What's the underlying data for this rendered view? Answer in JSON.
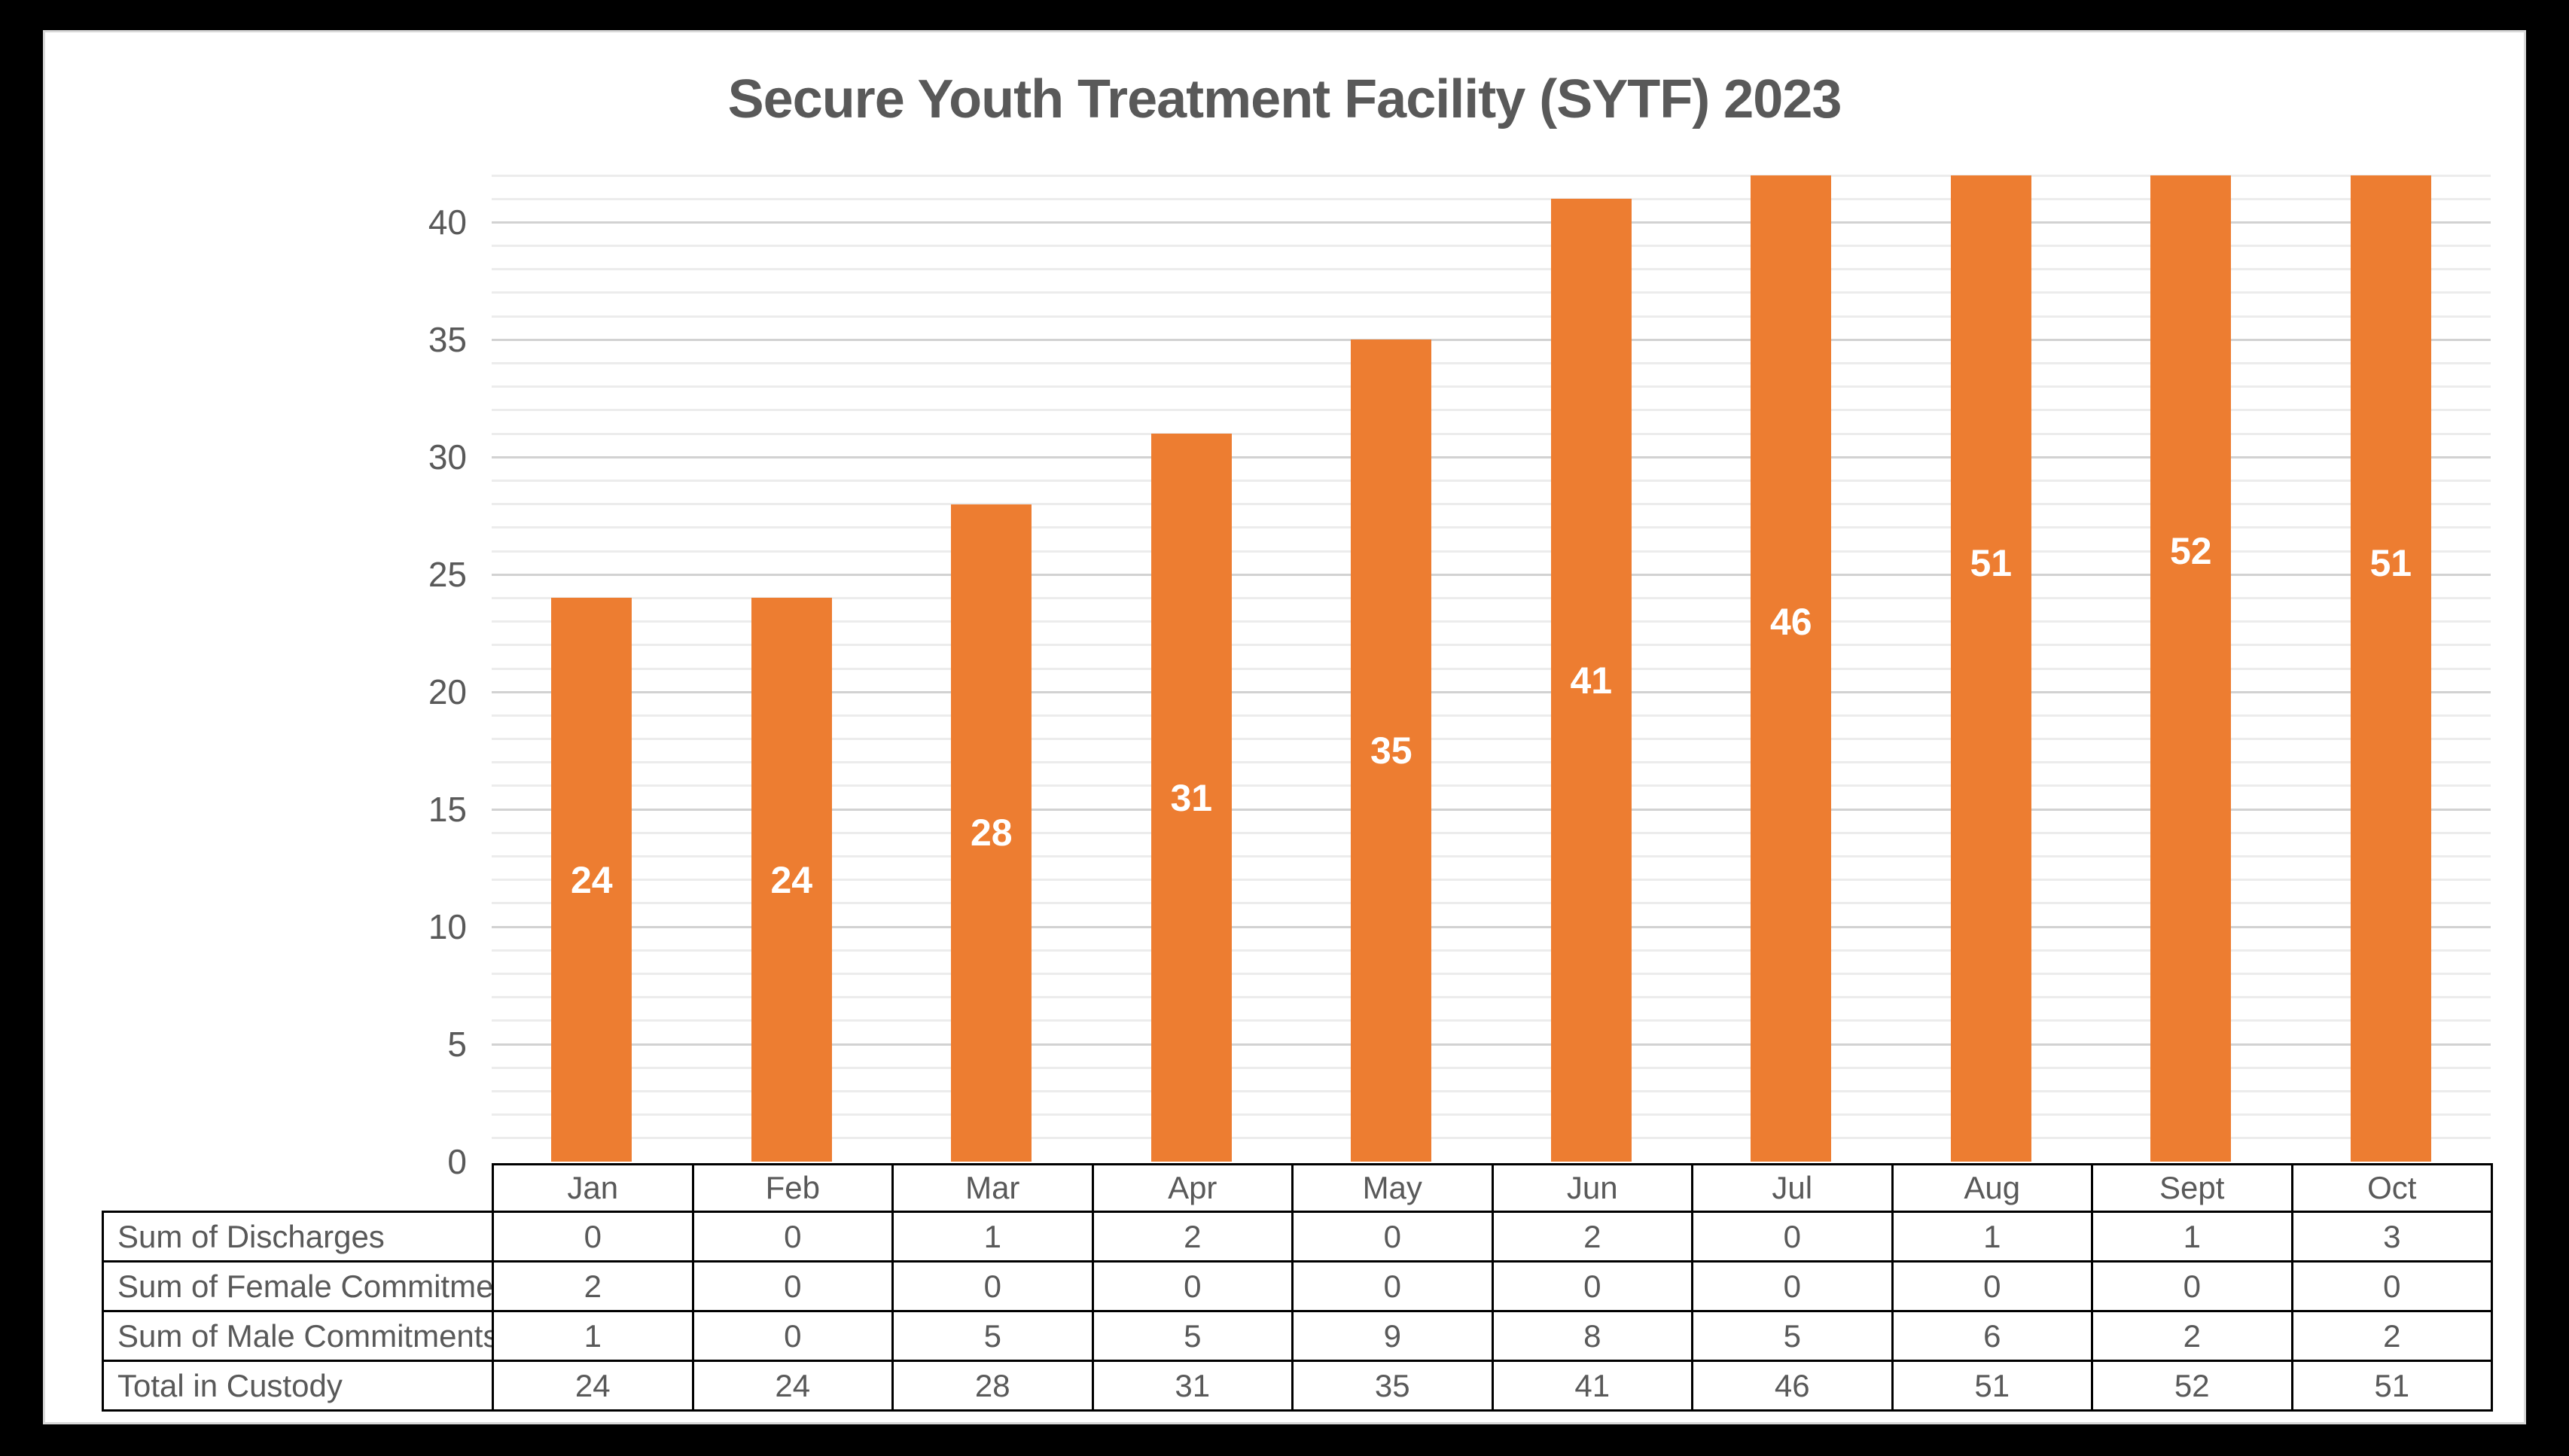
{
  "chart_data": {
    "type": "bar",
    "title": "Secure Youth Treatment Facility (SYTF) 2023",
    "categories": [
      "Jan",
      "Feb",
      "Mar",
      "Apr",
      "May",
      "Jun",
      "Jul",
      "Aug",
      "Sept",
      "Oct"
    ],
    "series": [
      {
        "name": "Sum of Discharges",
        "values": [
          0,
          0,
          1,
          2,
          0,
          2,
          0,
          1,
          1,
          3
        ]
      },
      {
        "name": "Sum of Female Commitments",
        "values": [
          2,
          0,
          0,
          0,
          0,
          0,
          0,
          0,
          0,
          0
        ]
      },
      {
        "name": "Sum of Male Commitments",
        "values": [
          1,
          0,
          5,
          5,
          9,
          8,
          5,
          6,
          2,
          2
        ]
      },
      {
        "name": "Total in Custody",
        "values": [
          24,
          24,
          28,
          31,
          35,
          41,
          46,
          51,
          52,
          51
        ]
      }
    ],
    "plotted_series": "Total in Custody",
    "values": [
      24,
      24,
      28,
      31,
      35,
      41,
      46,
      51,
      52,
      51
    ],
    "data_labels": [
      "24",
      "24",
      "28",
      "31",
      "35",
      "41",
      "46",
      "51",
      "52",
      "51"
    ],
    "xlabel": "",
    "ylabel": "",
    "ylim": [
      0,
      42
    ],
    "y_major_ticks": [
      0,
      5,
      10,
      15,
      20,
      25,
      30,
      35,
      40
    ],
    "y_minor_unit": 1,
    "grid": true,
    "legend": "none",
    "bars_clipped_at_axis_max": true
  },
  "colors": {
    "bar": "#ED7D31",
    "bar_label": "#FFFFFF",
    "text": "#595959",
    "major_grid": "#D2D2D2",
    "minor_grid": "#ECECEC",
    "table_border": "#000000",
    "page_background": "#000000",
    "panel_background": "#FFFFFF",
    "panel_border": "#D9D9D9"
  },
  "table": {
    "month_headers": [
      "Jan",
      "Feb",
      "Mar",
      "Apr",
      "May",
      "Jun",
      "Jul",
      "Aug",
      "Sept",
      "Oct"
    ],
    "rows": [
      {
        "label": "Sum of Discharges",
        "values": [
          "0",
          "0",
          "1",
          "2",
          "0",
          "2",
          "0",
          "1",
          "1",
          "3"
        ]
      },
      {
        "label": "Sum of Female Commitments",
        "values": [
          "2",
          "0",
          "0",
          "0",
          "0",
          "0",
          "0",
          "0",
          "0",
          "0"
        ]
      },
      {
        "label": "Sum of Male Commitments",
        "values": [
          "1",
          "0",
          "5",
          "5",
          "9",
          "8",
          "5",
          "6",
          "2",
          "2"
        ]
      },
      {
        "label": "Total in Custody",
        "values": [
          "24",
          "24",
          "28",
          "31",
          "35",
          "41",
          "46",
          "51",
          "52",
          "51"
        ]
      }
    ]
  }
}
